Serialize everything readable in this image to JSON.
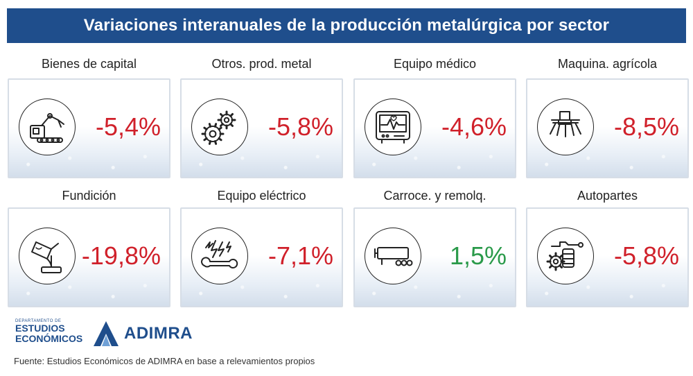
{
  "chart_data": {
    "type": "table",
    "title": "Variaciones interanuales de la producción metalúrgica por sector",
    "categories": [
      "Bienes de capital",
      "Otros. prod. metal",
      "Equipo médico",
      "Maquina. agrícola",
      "Fundición",
      "Equipo eléctrico",
      "Carroce. y remolq.",
      "Autopartes"
    ],
    "values": [
      -5.4,
      -5.8,
      -4.6,
      -8.5,
      -19.8,
      -7.1,
      1.5,
      -5.8
    ],
    "value_labels": [
      "-5,4%",
      "-5,8%",
      "-4,6%",
      "-8,5%",
      "-19,8%",
      "-7,1%",
      "1,5%",
      "-5,8%"
    ],
    "colors": {
      "negative": "#d0202a",
      "positive": "#2a9a4a",
      "header": "#1f4e8c"
    }
  },
  "sectors": [
    {
      "label": "Bienes de capital",
      "value": "-5,4%",
      "icon": "robot-arm-icon"
    },
    {
      "label": "Otros. prod. metal",
      "value": "-5,8%",
      "icon": "gears-icon"
    },
    {
      "label": "Equipo médico",
      "value": "-4,6%",
      "icon": "heart-monitor-icon"
    },
    {
      "label": "Maquina. agrícola",
      "value": "-8,5%",
      "icon": "sprayer-icon"
    },
    {
      "label": "Fundición",
      "value": "-19,8%",
      "icon": "foundry-ladle-icon"
    },
    {
      "label": "Equipo eléctrico",
      "value": "-7,1%",
      "icon": "electric-wrench-icon"
    },
    {
      "label": "Carroce. y remolq.",
      "value": "1,5%",
      "icon": "trailer-icon"
    },
    {
      "label": "Autopartes",
      "value": "-5,8%",
      "icon": "engine-parts-icon"
    }
  ],
  "footer": {
    "dept_small": "DEPARTAMENTO DE",
    "dept_line1": "ESTUDIOS",
    "dept_line2": "ECONÓMICOS",
    "brand": "ADIMRA",
    "source": "Fuente: Estudios Económicos de ADIMRA en base a relevamientos propios"
  }
}
